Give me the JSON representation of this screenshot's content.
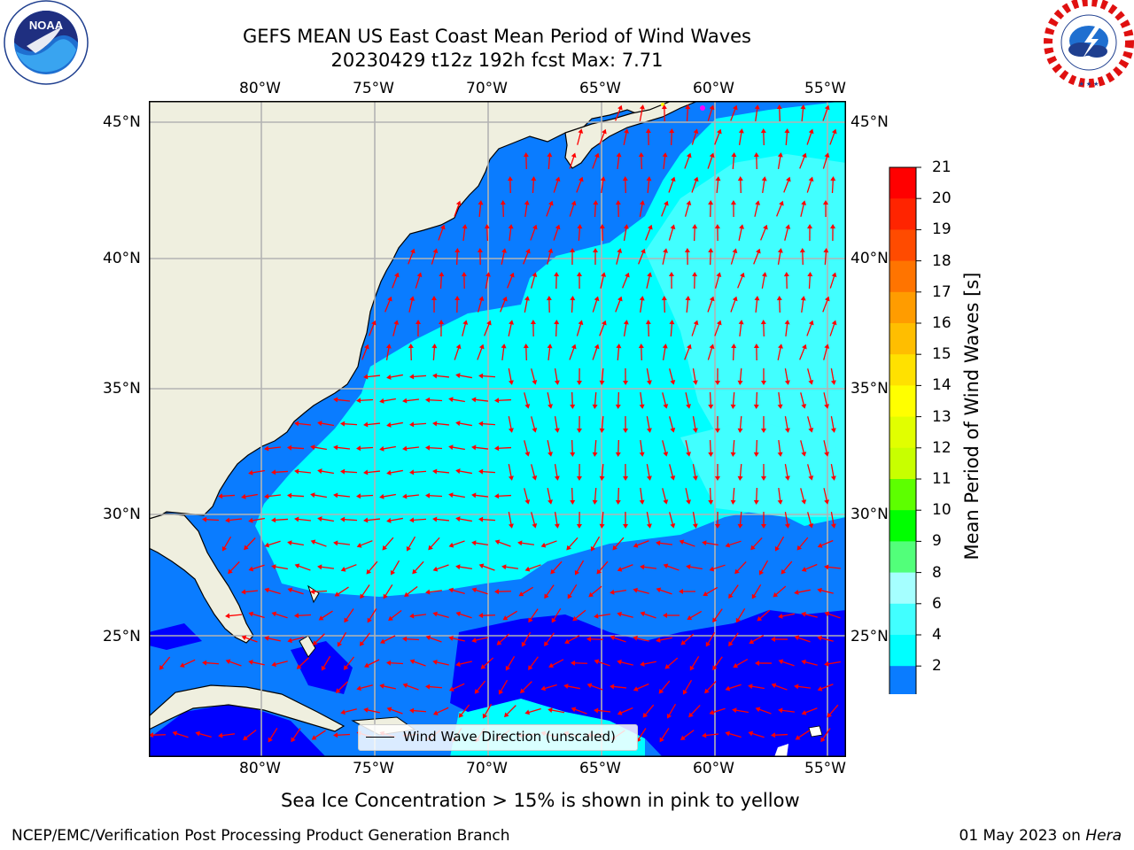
{
  "header": {
    "title_line1": "GEFS MEAN US East Coast Mean Period of Wind Waves",
    "title_line2": "20230429 t12z 192h fcst   Max: 7.71"
  },
  "logos": {
    "left_name": "NOAA",
    "left_ring": "NATIONAL OCEANIC AND ATMOSPHERIC ADMINISTRATION · U.S. DEPARTMENT OF COMMERCE",
    "right_ring": "NATIONAL WEATHER SERVICE"
  },
  "map": {
    "lon_labels": [
      "80°W",
      "75°W",
      "70°W",
      "65°W",
      "60°W",
      "55°W"
    ],
    "lat_labels": [
      "45°N",
      "40°N",
      "35°N",
      "30°N",
      "25°N"
    ],
    "legend_label": "Wind Wave Direction (unscaled)",
    "colors": {
      "land": "#efefdf",
      "level_2_4": "#0a7cff",
      "level_4_6": "#00ffff",
      "level_6_8": "#41ffff",
      "below_2": "#0000ff",
      "arrow": "#ff0000",
      "grid": "#b3b3b3"
    }
  },
  "colorbar": {
    "label": "Mean Period of Wind Waves [s]",
    "ticks": [
      "21",
      "20",
      "19",
      "18",
      "17",
      "16",
      "15",
      "14",
      "13",
      "12",
      "11",
      "10",
      "9",
      "8",
      "6",
      "4",
      "2"
    ],
    "colors": [
      "#ff0000",
      "#ff2400",
      "#ff4b00",
      "#ff7400",
      "#ff9c00",
      "#ffbe00",
      "#ffe100",
      "#ffff00",
      "#e1ff00",
      "#c8ff00",
      "#5dff00",
      "#00ff00",
      "#52ff7a",
      "#a5ffff",
      "#41ffff",
      "#00ffff",
      "#0a7cff"
    ],
    "extend_color": "#0000ff"
  },
  "footer": {
    "ice_note": "Sea Ice Concentration > 15% is shown in pink to yellow",
    "left": "NCEP/EMC/Verification Post Processing Product Generation Branch",
    "right_prefix": "01 May 2023 on ",
    "right_machine": "Hera"
  }
}
